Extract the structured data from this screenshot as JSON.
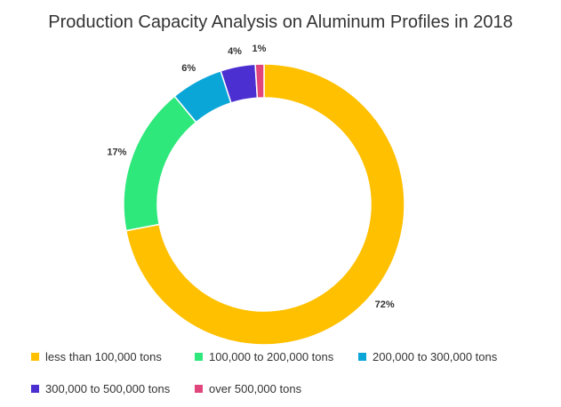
{
  "chart_data": {
    "type": "pie",
    "variant": "donut",
    "title": "Production Capacity Analysis on Aluminum Profiles in 2018",
    "categories": [
      "less than 100,000 tons",
      "100,000 to 200,000 tons",
      "200,000 to 300,000 tons",
      "300,000 to 500,000 tons",
      "over 500,000 tons"
    ],
    "values": [
      72,
      17,
      6,
      4,
      1
    ],
    "labels": [
      "72%",
      "17%",
      "6%",
      "4%",
      "1%"
    ],
    "colors": [
      "#FFC000",
      "#2EE87B",
      "#0BA6D8",
      "#4C2FD1",
      "#E0467C"
    ],
    "unit": "%",
    "legend_position": "bottom"
  }
}
